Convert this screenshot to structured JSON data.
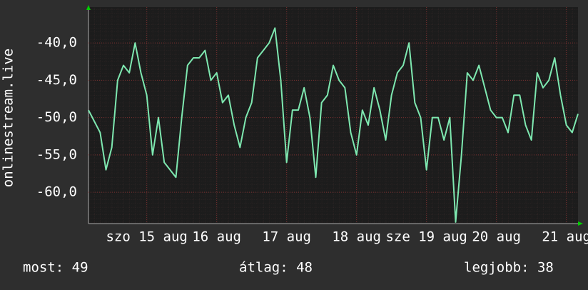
{
  "chart_data": {
    "type": "line",
    "y_label": "onlinestream.live",
    "x": [
      0,
      2,
      4,
      6,
      8,
      10,
      12,
      14,
      16,
      18,
      20,
      22,
      24,
      26,
      28,
      30,
      32,
      34,
      36,
      38,
      40,
      42,
      44,
      46,
      48,
      50,
      52,
      54,
      56,
      58,
      60,
      62,
      64,
      66,
      68,
      70,
      72,
      74,
      76,
      78,
      80,
      82,
      84,
      86,
      88,
      90,
      92,
      94,
      96,
      98,
      100,
      102,
      104,
      106,
      108,
      110,
      112,
      114,
      116,
      118,
      120,
      122,
      124,
      126,
      128,
      130,
      132,
      134,
      136,
      138,
      140,
      142,
      144,
      146,
      148,
      150,
      152,
      154,
      156,
      158,
      160,
      162,
      164,
      166,
      168
    ],
    "series": [
      {
        "name": "onlinestream.live",
        "color": "#7ee8b0",
        "values": [
          -49,
          -50.5,
          -52,
          -57,
          -54,
          -45,
          -43,
          -44,
          -40,
          -44,
          -47,
          -55,
          -50,
          -56,
          -57,
          -58,
          -50,
          -43,
          -42,
          -42,
          -41,
          -45,
          -44,
          -48,
          -47,
          -51,
          -54,
          -50,
          -48,
          -42,
          -41,
          -40,
          -38,
          -45,
          -56,
          -49,
          -49,
          -46,
          -50,
          -58,
          -48,
          -47,
          -43,
          -45,
          -46,
          -52,
          -55,
          -49,
          -51,
          -46,
          -49,
          -53,
          -47,
          -44,
          -43,
          -40,
          -48,
          -50,
          -57,
          -50,
          -50,
          -53,
          -50,
          -64,
          -55,
          -44,
          -45,
          -43,
          -46,
          -49,
          -50,
          -50,
          -52,
          -47,
          -47,
          -51,
          -53,
          -44,
          -46,
          -45,
          -42,
          -47,
          -51,
          -52,
          -49.5
        ]
      }
    ],
    "xlim": [
      0,
      168
    ],
    "xticks": [
      {
        "value": 20,
        "label": "szo 15 aug"
      },
      {
        "value": 44,
        "label": "16 aug"
      },
      {
        "value": 68,
        "label": "17 aug"
      },
      {
        "value": 92,
        "label": "18 aug"
      },
      {
        "value": 116,
        "label": "sze 19 aug"
      },
      {
        "value": 140,
        "label": "20 aug"
      },
      {
        "value": 164,
        "label": "21 aug"
      }
    ],
    "ylim": [
      -64.2,
      -35.2
    ],
    "yticks": [
      {
        "value": -40,
        "label": "-40,0"
      },
      {
        "value": -45,
        "label": "-45,0"
      },
      {
        "value": -50,
        "label": "-50,0"
      },
      {
        "value": -55,
        "label": "-55,0"
      },
      {
        "value": -60,
        "label": "-60,0"
      }
    ],
    "grid": true,
    "stats": [
      "most: 49",
      "átlag: 48",
      "legjobb: 38"
    ]
  }
}
